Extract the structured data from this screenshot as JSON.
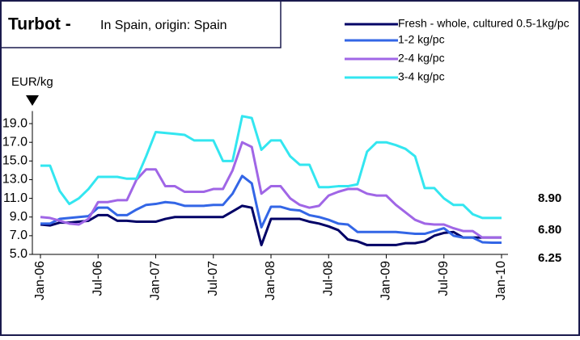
{
  "chart_data": {
    "type": "line",
    "title": "Turbot -",
    "subtitle": "In Spain, origin: Spain",
    "y_label": "EUR/kg",
    "annotations": [
      "8.90",
      "6.80",
      "6.25"
    ],
    "categories": [
      "Jan-06",
      null,
      null,
      null,
      null,
      null,
      "Jul-06",
      null,
      null,
      null,
      null,
      null,
      "Jan-07",
      null,
      null,
      null,
      null,
      null,
      "Jul-07",
      null,
      null,
      null,
      null,
      null,
      "Jan-08",
      null,
      null,
      null,
      null,
      null,
      "Jul-08",
      null,
      null,
      null,
      null,
      null,
      "Jan-09",
      null,
      null,
      null,
      null,
      null,
      "Jul-09",
      null,
      null,
      null,
      null,
      null,
      "Jan-10"
    ],
    "ylim": [
      5,
      20
    ],
    "yticks": [
      {
        "value": 5,
        "label": "5.0"
      },
      {
        "value": 7,
        "label": "7.0"
      },
      {
        "value": 9,
        "label": "9.0"
      },
      {
        "value": 11,
        "label": "11.0"
      },
      {
        "value": 13,
        "label": "13.0"
      },
      {
        "value": 15,
        "label": "15.0"
      },
      {
        "value": 17,
        "label": "17.0"
      },
      {
        "value": 19,
        "label": "19.0"
      }
    ],
    "series": [
      {
        "name": "Fresh - whole, cultured 0.5-1kg/pc",
        "color": "#000066",
        "values": [
          8.2,
          8.1,
          8.4,
          8.4,
          8.5,
          8.6,
          9.2,
          9.2,
          8.6,
          8.6,
          8.5,
          8.5,
          8.5,
          8.8,
          9.0,
          9.0,
          9.0,
          9.0,
          9.0,
          9.0,
          9.6,
          10.2,
          10.0,
          6.0,
          8.8,
          8.8,
          8.8,
          8.8,
          8.5,
          8.3,
          8.0,
          7.6,
          6.6,
          6.4,
          6.0,
          6.0,
          6.0,
          6.0,
          6.2,
          6.2,
          6.4,
          7.0,
          7.3,
          7.4,
          6.8,
          6.8,
          6.8,
          6.8,
          6.8
        ]
      },
      {
        "name": "1-2 kg/pc",
        "color": "#3366e6",
        "values": [
          8.3,
          8.3,
          8.8,
          8.9,
          9.0,
          9.1,
          10.0,
          10.0,
          9.2,
          9.2,
          9.8,
          10.3,
          10.4,
          10.6,
          10.5,
          10.2,
          10.2,
          10.2,
          10.3,
          10.3,
          11.5,
          13.4,
          12.6,
          7.9,
          10.1,
          10.1,
          9.8,
          9.7,
          9.2,
          9.0,
          8.7,
          8.3,
          8.2,
          7.4,
          7.4,
          7.4,
          7.4,
          7.4,
          7.3,
          7.2,
          7.2,
          7.5,
          7.8,
          7.0,
          6.8,
          6.8,
          6.3,
          6.25,
          6.25
        ]
      },
      {
        "name": "2-4 kg/pc",
        "color": "#a066e6",
        "values": [
          9.0,
          8.9,
          8.6,
          8.3,
          8.2,
          8.8,
          10.6,
          10.6,
          10.8,
          10.8,
          13.0,
          14.1,
          14.1,
          12.3,
          12.3,
          11.7,
          11.7,
          11.7,
          12.0,
          12.0,
          14.0,
          17.0,
          16.5,
          11.5,
          12.3,
          12.3,
          11.0,
          10.3,
          10.0,
          10.2,
          11.3,
          11.7,
          12.0,
          12.0,
          11.5,
          11.3,
          11.3,
          10.3,
          9.5,
          8.7,
          8.3,
          8.2,
          8.2,
          7.8,
          7.5,
          7.5,
          6.8,
          6.8,
          6.8
        ]
      },
      {
        "name": "3-4 kg/pc",
        "color": "#33e6f0",
        "values": [
          14.5,
          14.5,
          11.8,
          10.4,
          11.0,
          12.0,
          13.3,
          13.3,
          13.3,
          13.1,
          13.1,
          15.5,
          18.1,
          18.0,
          17.9,
          17.8,
          17.2,
          17.2,
          17.2,
          15.0,
          15.0,
          19.8,
          19.6,
          16.2,
          17.2,
          17.2,
          15.5,
          14.6,
          14.6,
          12.2,
          12.2,
          12.3,
          12.3,
          12.5,
          16.0,
          17.0,
          17.0,
          16.7,
          16.3,
          15.5,
          12.1,
          12.1,
          11.0,
          10.3,
          10.3,
          9.3,
          8.9,
          8.9,
          8.9
        ]
      }
    ]
  }
}
